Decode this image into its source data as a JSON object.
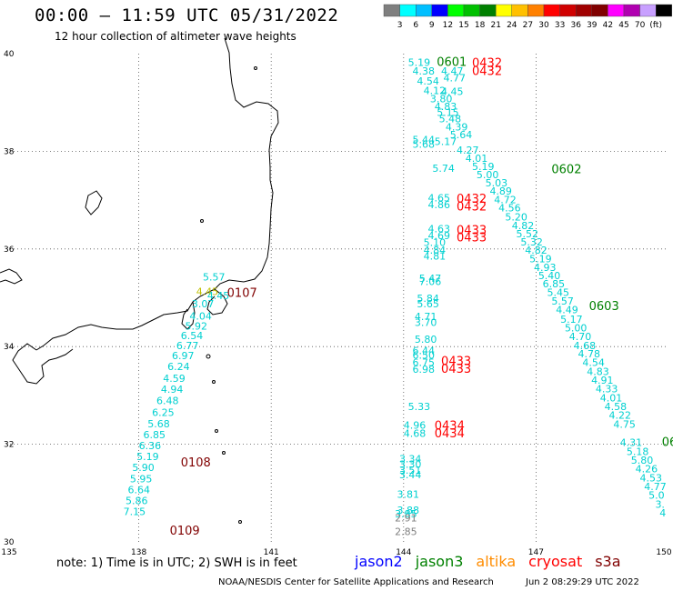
{
  "title": "00:00 – 11:59 UTC 05/31/2022",
  "subtitle": "12 hour collection of altimeter wave heights",
  "scale": {
    "colors": [
      "#7f7f7f",
      "#00ffff",
      "#00bfff",
      "#0000ff",
      "#00ff00",
      "#00c000",
      "#008000",
      "#ffff00",
      "#ffc000",
      "#ff8000",
      "#ff0000",
      "#d00000",
      "#a00000",
      "#800000",
      "#ff00ff",
      "#b000b0",
      "#c8a0ff",
      "#000000"
    ],
    "labels": [
      "3",
      "6",
      "9",
      "12",
      "15",
      "18",
      "21",
      "24",
      "27",
      "30",
      "33",
      "36",
      "39",
      "42",
      "45",
      "70",
      "(ft)"
    ]
  },
  "axes": {
    "lon_ticks": [
      "135",
      "138",
      "141",
      "144",
      "147",
      "150"
    ],
    "lat_ticks": [
      "40",
      "38",
      "36",
      "34",
      "32",
      "30"
    ]
  },
  "times": [
    {
      "text": "0601",
      "color": "#008000",
      "lon": 144.75,
      "lat": 39.75
    },
    {
      "text": "0432",
      "color": "#ff0000",
      "lon": 145.55,
      "lat": 39.73
    },
    {
      "text": "0432",
      "color": "#ff0000",
      "lon": 145.55,
      "lat": 39.56
    },
    {
      "text": "0602",
      "color": "#008000",
      "lon": 147.35,
      "lat": 37.55
    },
    {
      "text": "0432",
      "color": "#ff0000",
      "lon": 145.2,
      "lat": 36.95
    },
    {
      "text": "0432",
      "color": "#ff0000",
      "lon": 145.2,
      "lat": 36.79
    },
    {
      "text": "0433",
      "color": "#ff0000",
      "lon": 145.2,
      "lat": 36.3
    },
    {
      "text": "0433",
      "color": "#ff0000",
      "lon": 145.2,
      "lat": 36.15
    },
    {
      "text": "0107",
      "color": "#800000",
      "lon": 140.0,
      "lat": 35.02
    },
    {
      "text": "0603",
      "color": "#008000",
      "lon": 148.2,
      "lat": 34.75
    },
    {
      "text": "0433",
      "color": "#ff0000",
      "lon": 144.85,
      "lat": 33.62
    },
    {
      "text": "0433",
      "color": "#ff0000",
      "lon": 144.85,
      "lat": 33.46
    },
    {
      "text": "0434",
      "color": "#ff0000",
      "lon": 144.7,
      "lat": 32.3
    },
    {
      "text": "0434",
      "color": "#ff0000",
      "lon": 144.7,
      "lat": 32.14
    },
    {
      "text": "06",
      "color": "#008000",
      "lon": 149.85,
      "lat": 31.96
    },
    {
      "text": "0108",
      "color": "#800000",
      "lon": 138.95,
      "lat": 31.55
    },
    {
      "text": "0109",
      "color": "#800000",
      "lon": 138.7,
      "lat": 30.15
    }
  ],
  "swh": [
    {
      "v": "5.19",
      "lon": 144.1,
      "lat": 39.75,
      "c": "#00d0d0"
    },
    {
      "v": "4.38",
      "lon": 144.2,
      "lat": 39.57,
      "c": "#00d0d0"
    },
    {
      "v": "4.47",
      "lon": 144.85,
      "lat": 39.57,
      "c": "#00d0d0"
    },
    {
      "v": "4.77",
      "lon": 144.9,
      "lat": 39.43,
      "c": "#00d0d0"
    },
    {
      "v": "4.54",
      "lon": 144.3,
      "lat": 39.37,
      "c": "#00d0d0"
    },
    {
      "v": "4.12",
      "lon": 144.45,
      "lat": 39.17,
      "c": "#00d0d0"
    },
    {
      "v": "4.45",
      "lon": 144.85,
      "lat": 39.15,
      "c": "#00d0d0"
    },
    {
      "v": "3.80",
      "lon": 144.6,
      "lat": 39.0,
      "c": "#00d0d0"
    },
    {
      "v": "4.83",
      "lon": 144.7,
      "lat": 38.85,
      "c": "#00d0d0"
    },
    {
      "v": "5.15",
      "lon": 144.75,
      "lat": 38.72,
      "c": "#00d0d0"
    },
    {
      "v": "5.48",
      "lon": 144.8,
      "lat": 38.59,
      "c": "#00d0d0"
    },
    {
      "v": "4.39",
      "lon": 144.95,
      "lat": 38.43,
      "c": "#00d0d0"
    },
    {
      "v": "5.64",
      "lon": 145.05,
      "lat": 38.27,
      "c": "#00d0d0"
    },
    {
      "v": "5.44",
      "lon": 144.2,
      "lat": 38.17,
      "c": "#00d0d0"
    },
    {
      "v": "5.17",
      "lon": 144.7,
      "lat": 38.13,
      "c": "#00d0d0"
    },
    {
      "v": "5.68",
      "lon": 144.2,
      "lat": 38.07,
      "c": "#00d0d0"
    },
    {
      "v": "4.27",
      "lon": 145.2,
      "lat": 37.95,
      "c": "#00d0d0"
    },
    {
      "v": "4.01",
      "lon": 145.4,
      "lat": 37.78,
      "c": "#00d0d0"
    },
    {
      "v": "5.74",
      "lon": 144.65,
      "lat": 37.58,
      "c": "#00d0d0"
    },
    {
      "v": "5.19",
      "lon": 145.55,
      "lat": 37.62,
      "c": "#00d0d0"
    },
    {
      "v": "5.00",
      "lon": 145.65,
      "lat": 37.45,
      "c": "#00d0d0"
    },
    {
      "v": "5.03",
      "lon": 145.85,
      "lat": 37.28,
      "c": "#00d0d0"
    },
    {
      "v": "4.89",
      "lon": 145.95,
      "lat": 37.11,
      "c": "#00d0d0"
    },
    {
      "v": "4.65",
      "lon": 144.55,
      "lat": 36.97,
      "c": "#00d0d0"
    },
    {
      "v": "4.72",
      "lon": 146.05,
      "lat": 36.94,
      "c": "#00d0d0"
    },
    {
      "v": "4.86",
      "lon": 144.55,
      "lat": 36.83,
      "c": "#00d0d0"
    },
    {
      "v": "4.56",
      "lon": 146.15,
      "lat": 36.77,
      "c": "#00d0d0"
    },
    {
      "v": "5.20",
      "lon": 146.3,
      "lat": 36.58,
      "c": "#00d0d0"
    },
    {
      "v": "4.63",
      "lon": 144.55,
      "lat": 36.34,
      "c": "#00d0d0"
    },
    {
      "v": "4.69",
      "lon": 144.55,
      "lat": 36.2,
      "c": "#00d0d0"
    },
    {
      "v": "4.82",
      "lon": 146.45,
      "lat": 36.41,
      "c": "#00d0d0"
    },
    {
      "v": "5.52",
      "lon": 146.55,
      "lat": 36.24,
      "c": "#00d0d0"
    },
    {
      "v": "5.10",
      "lon": 144.45,
      "lat": 36.06,
      "c": "#00d0d0"
    },
    {
      "v": "5.32",
      "lon": 146.65,
      "lat": 36.07,
      "c": "#00d0d0"
    },
    {
      "v": "4.84",
      "lon": 144.45,
      "lat": 35.9,
      "c": "#00d0d0"
    },
    {
      "v": "4.82",
      "lon": 146.75,
      "lat": 35.9,
      "c": "#00d0d0"
    },
    {
      "v": "4.81",
      "lon": 144.45,
      "lat": 35.78,
      "c": "#00d0d0"
    },
    {
      "v": "5.19",
      "lon": 146.85,
      "lat": 35.73,
      "c": "#00d0d0"
    },
    {
      "v": "4.93",
      "lon": 146.95,
      "lat": 35.55,
      "c": "#00d0d0"
    },
    {
      "v": "5.40",
      "lon": 147.05,
      "lat": 35.38,
      "c": "#00d0d0"
    },
    {
      "v": "5.47",
      "lon": 144.35,
      "lat": 35.33,
      "c": "#00d0d0"
    },
    {
      "v": "7.06",
      "lon": 144.35,
      "lat": 35.26,
      "c": "#00d0d0"
    },
    {
      "v": "6.85",
      "lon": 147.15,
      "lat": 35.21,
      "c": "#00d0d0"
    },
    {
      "v": "5.45",
      "lon": 147.25,
      "lat": 35.04,
      "c": "#00d0d0"
    },
    {
      "v": "5.84",
      "lon": 144.3,
      "lat": 34.92,
      "c": "#00d0d0"
    },
    {
      "v": "5.57",
      "lon": 147.35,
      "lat": 34.86,
      "c": "#00d0d0"
    },
    {
      "v": "5.65",
      "lon": 144.3,
      "lat": 34.8,
      "c": "#00d0d0"
    },
    {
      "v": "4.49",
      "lon": 147.45,
      "lat": 34.68,
      "c": "#00d0d0"
    },
    {
      "v": "4.71",
      "lon": 144.25,
      "lat": 34.54,
      "c": "#00d0d0"
    },
    {
      "v": "5.17",
      "lon": 147.55,
      "lat": 34.49,
      "c": "#00d0d0"
    },
    {
      "v": "3.70",
      "lon": 144.25,
      "lat": 34.42,
      "c": "#00d0d0"
    },
    {
      "v": "5.00",
      "lon": 147.65,
      "lat": 34.31,
      "c": "#00d0d0"
    },
    {
      "v": "4.70",
      "lon": 147.75,
      "lat": 34.13,
      "c": "#00d0d0"
    },
    {
      "v": "5.80",
      "lon": 144.25,
      "lat": 34.08,
      "c": "#00d0d0"
    },
    {
      "v": "4.68",
      "lon": 147.85,
      "lat": 33.95,
      "c": "#00d0d0"
    },
    {
      "v": "6.44",
      "lon": 144.2,
      "lat": 33.85,
      "c": "#00d0d0"
    },
    {
      "v": "6.50",
      "lon": 144.2,
      "lat": 33.75,
      "c": "#00d0d0"
    },
    {
      "v": "4.78",
      "lon": 147.95,
      "lat": 33.78,
      "c": "#00d0d0"
    },
    {
      "v": "6.75",
      "lon": 144.2,
      "lat": 33.6,
      "c": "#00d0d0"
    },
    {
      "v": "6.98",
      "lon": 144.2,
      "lat": 33.46,
      "c": "#00d0d0"
    },
    {
      "v": "4.54",
      "lon": 148.05,
      "lat": 33.6,
      "c": "#00d0d0"
    },
    {
      "v": "4.83",
      "lon": 148.15,
      "lat": 33.42,
      "c": "#00d0d0"
    },
    {
      "v": "4.91",
      "lon": 148.25,
      "lat": 33.24,
      "c": "#00d0d0"
    },
    {
      "v": "4.33",
      "lon": 148.35,
      "lat": 33.06,
      "c": "#00d0d0"
    },
    {
      "v": "5.33",
      "lon": 144.1,
      "lat": 32.7,
      "c": "#00d0d0"
    },
    {
      "v": "4.01",
      "lon": 148.45,
      "lat": 32.88,
      "c": "#00d0d0"
    },
    {
      "v": "4.58",
      "lon": 148.55,
      "lat": 32.7,
      "c": "#00d0d0"
    },
    {
      "v": "4.96",
      "lon": 144.0,
      "lat": 32.32,
      "c": "#00d0d0"
    },
    {
      "v": "4.22",
      "lon": 148.65,
      "lat": 32.52,
      "c": "#00d0d0"
    },
    {
      "v": "4.68",
      "lon": 144.0,
      "lat": 32.15,
      "c": "#00d0d0"
    },
    {
      "v": "4.75",
      "lon": 148.75,
      "lat": 32.34,
      "c": "#00d0d0"
    },
    {
      "v": "4.31",
      "lon": 148.9,
      "lat": 31.96,
      "c": "#00d0d0"
    },
    {
      "v": "5.18",
      "lon": 149.05,
      "lat": 31.78,
      "c": "#00d0d0"
    },
    {
      "v": "5.80",
      "lon": 149.15,
      "lat": 31.6,
      "c": "#00d0d0"
    },
    {
      "v": "4.26",
      "lon": 149.25,
      "lat": 31.42,
      "c": "#00d0d0"
    },
    {
      "v": "4.53",
      "lon": 149.35,
      "lat": 31.24,
      "c": "#00d0d0"
    },
    {
      "v": "4.77",
      "lon": 149.45,
      "lat": 31.06,
      "c": "#00d0d0"
    },
    {
      "v": "5.0",
      "lon": 149.55,
      "lat": 30.88,
      "c": "#00d0d0"
    },
    {
      "v": "3.",
      "lon": 149.7,
      "lat": 30.7,
      "c": "#00d0d0"
    },
    {
      "v": "4",
      "lon": 149.8,
      "lat": 30.52,
      "c": "#00d0d0"
    },
    {
      "v": "3.34",
      "lon": 143.9,
      "lat": 31.63,
      "c": "#00d0d0"
    },
    {
      "v": "3.30",
      "lon": 143.9,
      "lat": 31.52,
      "c": "#00d0d0"
    },
    {
      "v": "3.51",
      "lon": 143.9,
      "lat": 31.4,
      "c": "#00d0d0"
    },
    {
      "v": "3.44",
      "lon": 143.9,
      "lat": 31.3,
      "c": "#00d0d0"
    },
    {
      "v": "3.81",
      "lon": 143.85,
      "lat": 30.9,
      "c": "#00d0d0"
    },
    {
      "v": "3.88",
      "lon": 143.85,
      "lat": 30.58,
      "c": "#00d0d0"
    },
    {
      "v": "3.85",
      "lon": 143.8,
      "lat": 30.5,
      "c": "#00d0d0"
    },
    {
      "v": "2.91",
      "lon": 143.8,
      "lat": 30.42,
      "c": "#808080"
    },
    {
      "v": "2.85",
      "lon": 143.8,
      "lat": 30.14,
      "c": "#808080"
    },
    {
      "v": "5.57",
      "lon": 139.45,
      "lat": 35.35,
      "c": "#00d0d0"
    },
    {
      "v": "4.45",
      "lon": 139.3,
      "lat": 35.06,
      "c": "#c0c000"
    },
    {
      "v": "4.45",
      "lon": 139.55,
      "lat": 34.97,
      "c": "#00d0d0"
    },
    {
      "v": "3.07",
      "lon": 139.2,
      "lat": 34.8,
      "c": "#00d0d0"
    },
    {
      "v": "4.04",
      "lon": 139.15,
      "lat": 34.55,
      "c": "#00d0d0"
    },
    {
      "v": "5.92",
      "lon": 139.05,
      "lat": 34.35,
      "c": "#00d0d0"
    },
    {
      "v": "6.54",
      "lon": 138.95,
      "lat": 34.15,
      "c": "#00d0d0"
    },
    {
      "v": "6.77",
      "lon": 138.85,
      "lat": 33.95,
      "c": "#00d0d0"
    },
    {
      "v": "6.97",
      "lon": 138.75,
      "lat": 33.74,
      "c": "#00d0d0"
    },
    {
      "v": "6.24",
      "lon": 138.65,
      "lat": 33.52,
      "c": "#00d0d0"
    },
    {
      "v": "4.59",
      "lon": 138.55,
      "lat": 33.28,
      "c": "#00d0d0"
    },
    {
      "v": "4.94",
      "lon": 138.5,
      "lat": 33.05,
      "c": "#00d0d0"
    },
    {
      "v": "6.48",
      "lon": 138.4,
      "lat": 32.82,
      "c": "#00d0d0"
    },
    {
      "v": "6.25",
      "lon": 138.3,
      "lat": 32.58,
      "c": "#00d0d0"
    },
    {
      "v": "5.68",
      "lon": 138.2,
      "lat": 32.35,
      "c": "#00d0d0"
    },
    {
      "v": "6.85",
      "lon": 138.1,
      "lat": 32.12,
      "c": "#00d0d0"
    },
    {
      "v": "6.36",
      "lon": 138.0,
      "lat": 31.9,
      "c": "#00d0d0"
    },
    {
      "v": "5.19",
      "lon": 137.95,
      "lat": 31.68,
      "c": "#00d0d0"
    },
    {
      "v": "5.90",
      "lon": 137.85,
      "lat": 31.45,
      "c": "#00d0d0"
    },
    {
      "v": "5.95",
      "lon": 137.8,
      "lat": 31.22,
      "c": "#00d0d0"
    },
    {
      "v": "6.64",
      "lon": 137.75,
      "lat": 31.0,
      "c": "#00d0d0"
    },
    {
      "v": "5.86",
      "lon": 137.7,
      "lat": 30.77,
      "c": "#00d0d0"
    },
    {
      "v": "7.15",
      "lon": 137.65,
      "lat": 30.55,
      "c": "#00d0d0"
    }
  ],
  "note": "note:  1) Time is in UTC; 2) SWH is in feet",
  "satellites": [
    {
      "name": "jason2",
      "color": "#0000ff"
    },
    {
      "name": "jason3",
      "color": "#008000"
    },
    {
      "name": "altika",
      "color": "#ff8c00"
    },
    {
      "name": "cryosat",
      "color": "#ff0000"
    },
    {
      "name": "s3a",
      "color": "#800000"
    }
  ],
  "credit": "NOAA/NESDIS Center for Satellite Applications and Research",
  "generated": "Jun  2 08:29:29 UTC 2022"
}
